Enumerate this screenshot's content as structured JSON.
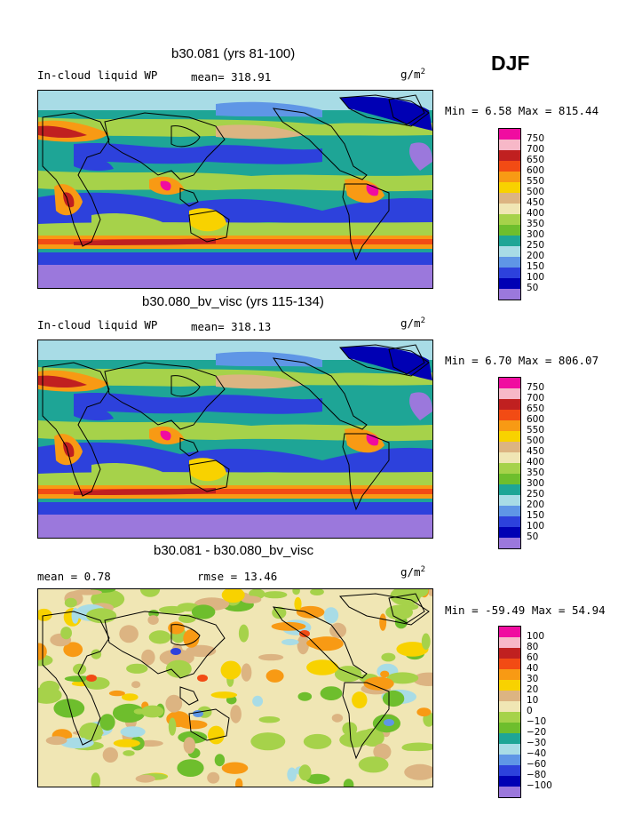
{
  "season": "DJF",
  "units_base": "g/m",
  "units_exp": "2",
  "panels": [
    {
      "title": "b30.081 (yrs 81-100)",
      "variable": "In-cloud liquid WP",
      "stat_text": "mean= 318.91",
      "minmax": "Min =    6.58 Max = 815.44"
    },
    {
      "title": "b30.080_bv_visc (yrs 115-134)",
      "variable": "In-cloud liquid WP",
      "stat_text": "mean= 318.13",
      "minmax": "Min =    6.70 Max = 806.07"
    },
    {
      "title": "b30.081 - b30.080_bv_visc",
      "mean_text": "mean =    0.78",
      "rmse_text": "rmse =   13.46",
      "minmax": "Min = -59.49 Max =  54.94"
    }
  ],
  "colorbar_abs": {
    "labels": [
      "750",
      "700",
      "650",
      "600",
      "550",
      "500",
      "450",
      "400",
      "350",
      "300",
      "250",
      "200",
      "150",
      "100",
      "50"
    ],
    "colors": [
      "#f00ca0",
      "#f7b8c8",
      "#c02020",
      "#f24b14",
      "#f89a14",
      "#f8d200",
      "#dcb482",
      "#f0e6b4",
      "#a6d24a",
      "#6ebe2d",
      "#1ea596",
      "#a8dce6",
      "#5f96e6",
      "#2d41dc",
      "#0000b4",
      "#9b78dc"
    ]
  },
  "colorbar_diff": {
    "labels": [
      "100",
      "80",
      "60",
      "40",
      "30",
      "20",
      "10",
      "0",
      "−10",
      "−20",
      "−30",
      "−40",
      "−60",
      "−80",
      "−100"
    ],
    "colors": [
      "#f00ca0",
      "#f7b8c8",
      "#c02020",
      "#f24b14",
      "#f89a14",
      "#f8d200",
      "#dcb482",
      "#f0e6b4",
      "#a6d24a",
      "#6ebe2d",
      "#1ea596",
      "#a8dce6",
      "#5f96e6",
      "#2d41dc",
      "#0000b4",
      "#9b78dc"
    ]
  }
}
